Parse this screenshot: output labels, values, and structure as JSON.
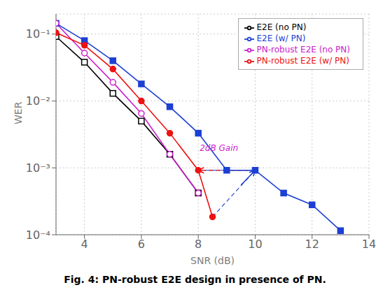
{
  "chart_data": {
    "type": "line",
    "log": "y",
    "grid": true,
    "legend": "upper right",
    "xlabel": "SNR (dB)",
    "ylabel": "WER",
    "caption": "Fig. 4: PN-robust E2E design in presence of PN.",
    "xlim": [
      3,
      14
    ],
    "ylim": [
      0.0001,
      0.2
    ],
    "xticks": [
      4,
      6,
      8,
      10,
      12,
      14
    ],
    "yticks": [
      {
        "value": 0.0001,
        "label": "10⁻⁴"
      },
      {
        "value": 0.001,
        "label": "10⁻³"
      },
      {
        "value": 0.01,
        "label": "10⁻²"
      },
      {
        "value": 0.1,
        "label": "10⁻¹"
      }
    ],
    "series": [
      {
        "name": "E2E (no PN)",
        "color": "#000000",
        "marker": "square-open",
        "x": [
          3,
          4,
          5,
          6,
          7,
          8
        ],
        "values": [
          0.092,
          0.038,
          0.013,
          0.005,
          0.0016,
          0.00042
        ]
      },
      {
        "name": "E2E (w/ PN)",
        "color": "#1c3fd4",
        "marker": "square",
        "x": [
          3,
          4,
          5,
          6,
          7,
          8,
          9,
          10,
          11,
          12,
          13
        ],
        "values": [
          0.145,
          0.08,
          0.04,
          0.018,
          0.0082,
          0.0033,
          0.00092,
          0.00092,
          0.00042,
          0.00028,
          0.000115
        ]
      },
      {
        "name": "PN-robust E2E (no PN)",
        "color": "#cc22cc",
        "marker": "circle-open",
        "x": [
          3,
          4,
          5,
          6,
          7,
          8
        ],
        "values": [
          0.145,
          0.052,
          0.019,
          0.0065,
          0.0016,
          0.00042
        ]
      },
      {
        "name": "PN-robust E2E (w/ PN)",
        "color": "#ee1111",
        "marker": "circle",
        "x": [
          3,
          4,
          5,
          6,
          7,
          8,
          8.5
        ],
        "values": [
          0.105,
          0.068,
          0.03,
          0.01,
          0.0033,
          0.00092,
          0.000185
        ]
      }
    ],
    "annotations": [
      {
        "type": "arrow",
        "x": [
          10,
          8
        ],
        "y": [
          0.00092,
          0.00092
        ],
        "color": "#ee1111",
        "line_style": "dashed"
      },
      {
        "type": "line",
        "x": [
          8,
          10
        ],
        "y": [
          0.00092,
          0.00092
        ],
        "color": "#1c3fd4",
        "line_style": "dashed"
      },
      {
        "type": "line",
        "x": [
          8.5,
          10
        ],
        "y": [
          0.000185,
          0.00092
        ],
        "color": "#1c3fd4",
        "line_style": "dashed"
      },
      {
        "type": "arrow",
        "x": [
          9.5,
          10
        ],
        "y": [
          0.000552,
          0.00092
        ],
        "color": "#1c3fd4",
        "line_style": "solid"
      },
      {
        "type": "text",
        "text": "2dB Gain",
        "x": 8.05,
        "y": 0.0018,
        "color": "#cc22cc"
      }
    ]
  }
}
